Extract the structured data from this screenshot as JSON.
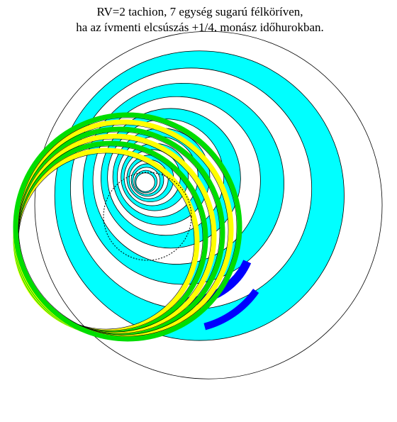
{
  "title": [
    "RV=2 tachion, 7 egység sugarú félköríven,",
    "ha az ívmenti elcsúszás +1/4, monász időhurokban."
  ]
}
